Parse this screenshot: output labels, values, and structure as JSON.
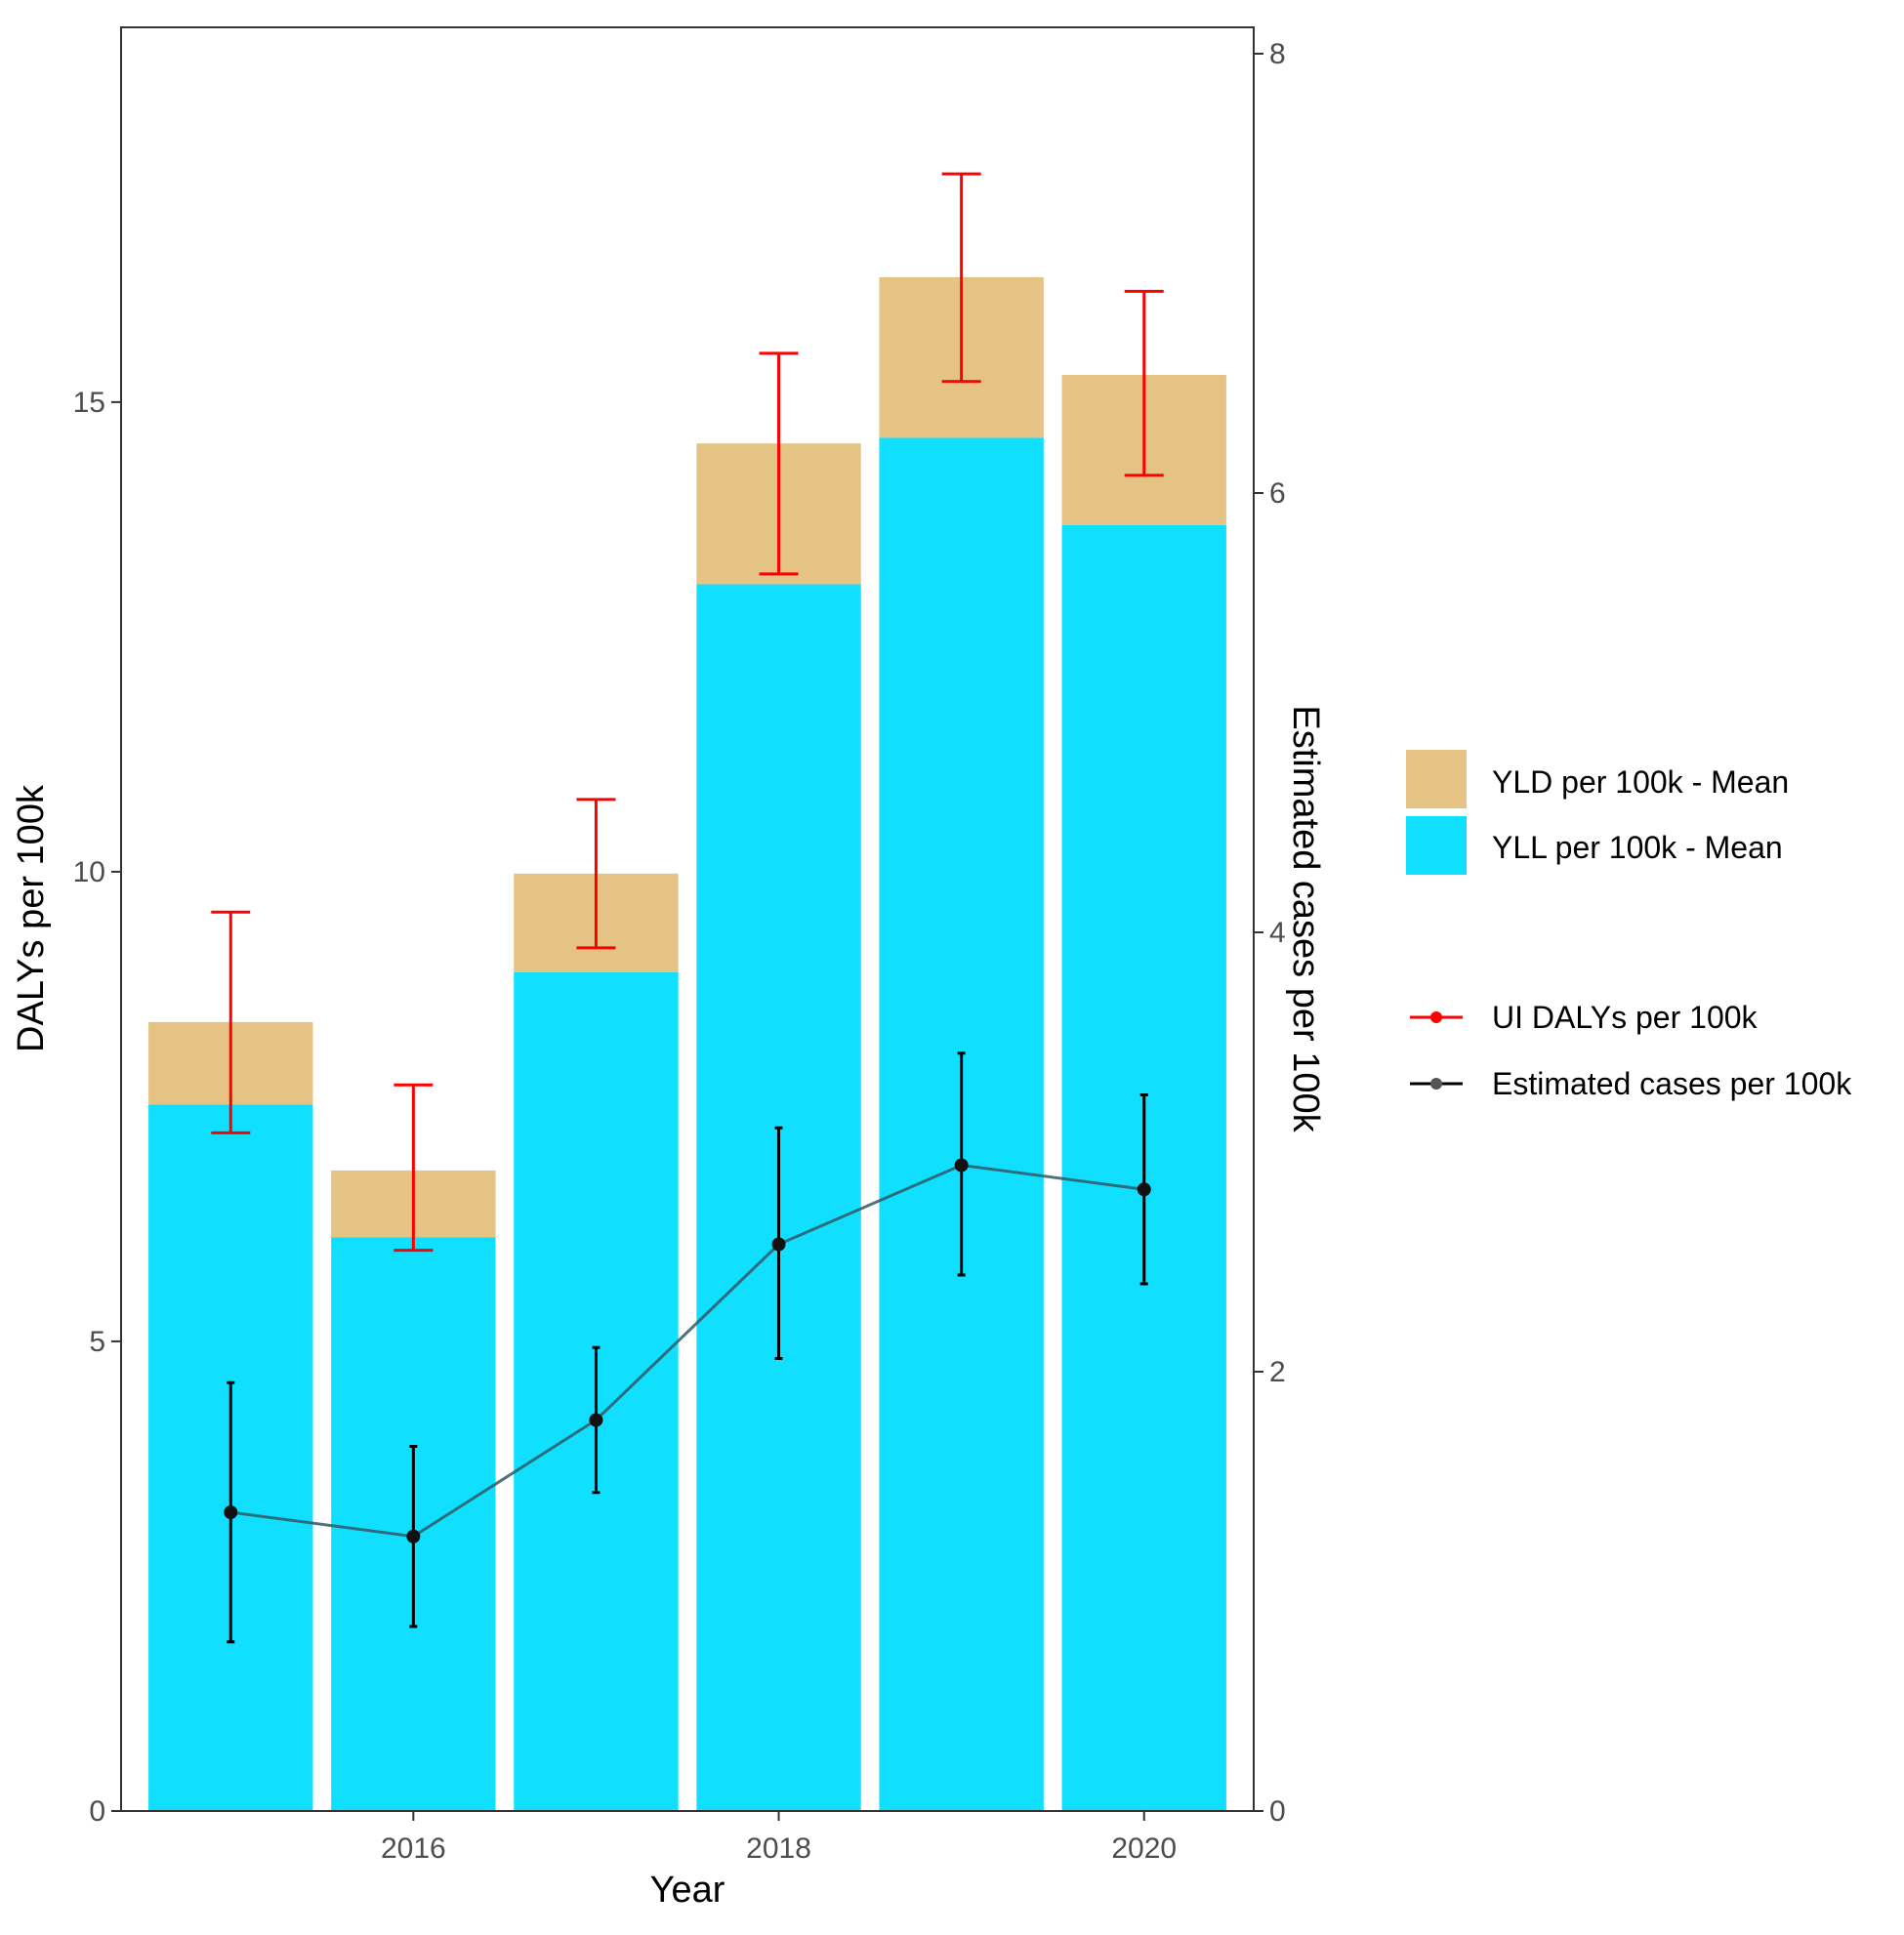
{
  "chart_data": {
    "type": "bar",
    "stacked": true,
    "title": "",
    "xlabel": "Year",
    "ylabel": "DALYs per 100k",
    "y2label": "Estimated cases per 100k",
    "x": [
      2015,
      2016,
      2017,
      2018,
      2019,
      2020
    ],
    "xticks": [
      "2016",
      "2018",
      "2020"
    ],
    "xlim": [
      2014.4,
      2020.6
    ],
    "ylim": [
      0,
      18.99
    ],
    "yticks": [
      "0",
      "5",
      "10",
      "15"
    ],
    "y2lim": [
      0,
      8.12
    ],
    "y2ticks": [
      "0",
      "2",
      "4",
      "6",
      "8"
    ],
    "series": [
      {
        "name": "YLL per 100k - Mean",
        "type": "bar",
        "color": "#10DFFF",
        "values": [
          7.52,
          6.11,
          8.93,
          13.06,
          14.62,
          13.69
        ]
      },
      {
        "name": "YLD per 100k - Mean",
        "type": "bar",
        "color": "#E5C385",
        "values": [
          0.88,
          0.71,
          1.05,
          1.5,
          1.71,
          1.6
        ]
      },
      {
        "name": "UI DALYs per 100k",
        "type": "errorbar",
        "axis": "left",
        "color": "#FF0000",
        "lower": [
          7.22,
          5.97,
          9.19,
          13.17,
          15.22,
          14.22
        ],
        "upper": [
          9.57,
          7.73,
          10.77,
          15.52,
          17.43,
          16.18
        ]
      },
      {
        "name": "Estimated cases per 100k",
        "type": "line",
        "axis": "right",
        "color": "#000000",
        "values": [
          1.36,
          1.25,
          1.78,
          2.58,
          2.94,
          2.83
        ],
        "lower": [
          0.77,
          0.84,
          1.45,
          2.06,
          2.44,
          2.4
        ],
        "upper": [
          1.95,
          1.66,
          2.11,
          3.11,
          3.45,
          3.26
        ]
      }
    ],
    "legend": {
      "position": "right",
      "fill_items": [
        "YLD per 100k - Mean",
        "YLL per 100k - Mean"
      ],
      "line_items": [
        "UI DALYs per 100k",
        "Estimated cases per 100k"
      ]
    },
    "grid": false
  }
}
